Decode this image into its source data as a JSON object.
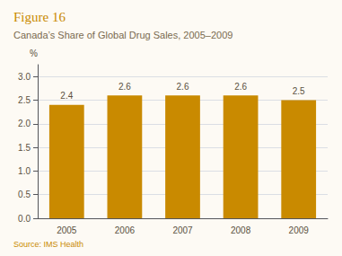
{
  "chart_data": {
    "type": "bar",
    "title": "Figure 16",
    "subtitle": "Canada’s Share of Global Drug Sales, 2005–2009",
    "ylabel": "%",
    "source": "Source: IMS Health",
    "categories": [
      "2005",
      "2006",
      "2007",
      "2008",
      "2009"
    ],
    "values": [
      2.4,
      2.6,
      2.6,
      2.6,
      2.5
    ],
    "color": "#C98A00",
    "ylim": [
      0.0,
      3.25
    ],
    "yticks": [
      {
        "value": 0.0,
        "label": "0.0"
      },
      0.5,
      {
        "value": 1.0,
        "label": "1.0"
      },
      1.5,
      {
        "value": 2.0,
        "label": "2.0"
      },
      2.5,
      {
        "value": 3.0,
        "label": "3.0"
      }
    ],
    "grid": true,
    "data_labels": true
  }
}
